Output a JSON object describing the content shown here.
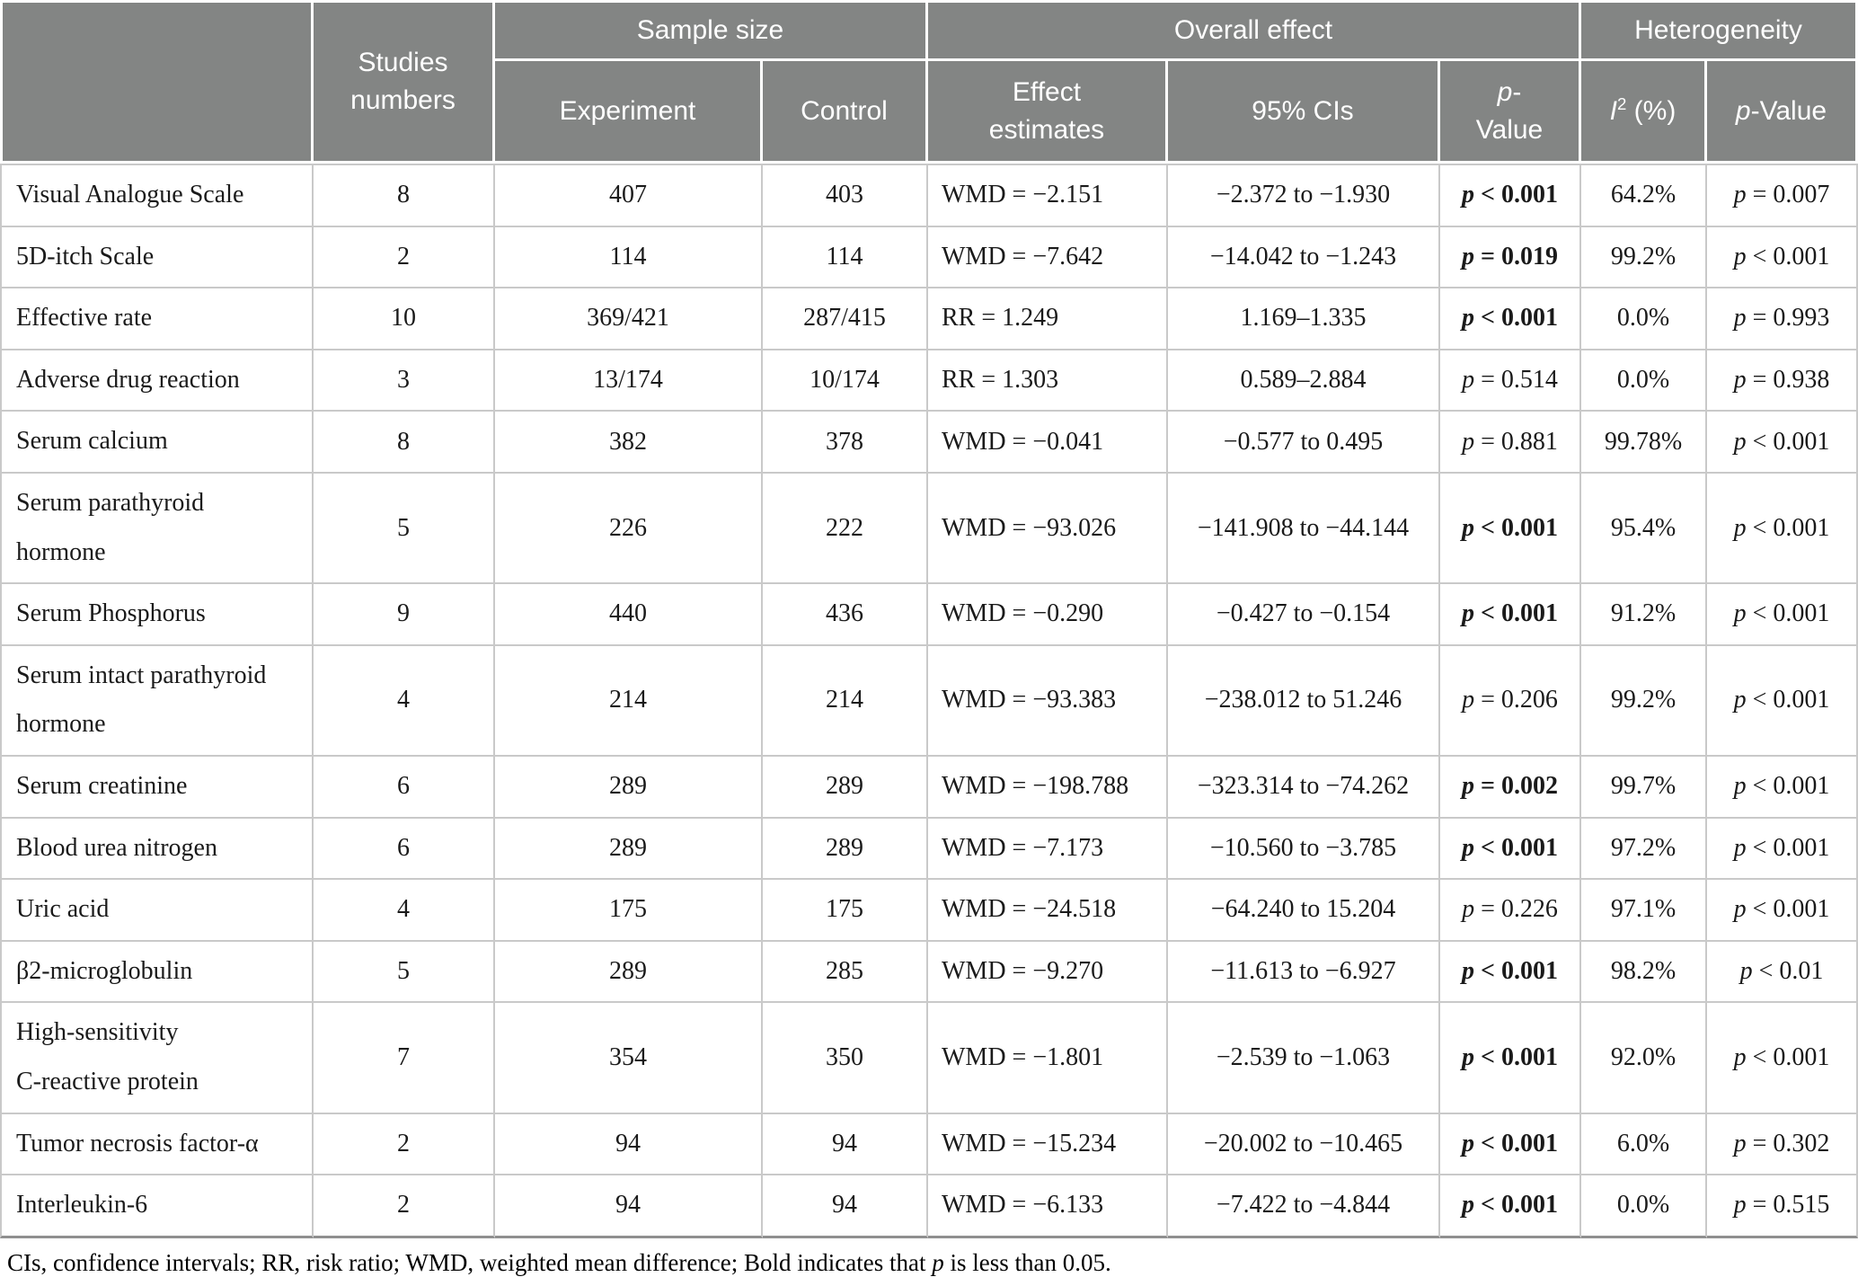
{
  "table": {
    "header": {
      "blank": "",
      "studies": "Studies\nnumbers",
      "sample_size": "Sample size",
      "experiment": "Experiment",
      "control": "Control",
      "overall_effect": "Overall effect",
      "effect_estimates": "Effect\nestimates",
      "cis": "95% CIs",
      "p_symbol": "p",
      "p_value_overall_rest": "-\nValue",
      "heterogeneity": "Heterogeneity",
      "i2_italic": "I",
      "i2_sup": "2",
      "i2_rest": " (%)",
      "p_value_het_rest": "-Value"
    },
    "rows": [
      {
        "outcome": "Visual Analogue Scale",
        "studies": "8",
        "experiment": "407",
        "control": "403",
        "effect": "WMD = −2.151",
        "ci": "−2.372 to −1.930",
        "p": "< 0.001",
        "p_bold": true,
        "i2": "64.2%",
        "het_p": "= 0.007"
      },
      {
        "outcome": "5D-itch Scale",
        "studies": "2",
        "experiment": "114",
        "control": "114",
        "effect": "WMD = −7.642",
        "ci": "−14.042 to −1.243",
        "p": "= 0.019",
        "p_bold": true,
        "i2": "99.2%",
        "het_p": "< 0.001"
      },
      {
        "outcome": "Effective rate",
        "studies": "10",
        "experiment": "369/421",
        "control": "287/415",
        "effect": "RR = 1.249",
        "ci": "1.169–1.335",
        "p": "< 0.001",
        "p_bold": true,
        "i2": "0.0%",
        "het_p": "= 0.993"
      },
      {
        "outcome": "Adverse drug reaction",
        "studies": "3",
        "experiment": "13/174",
        "control": "10/174",
        "effect": "RR = 1.303",
        "ci": "0.589–2.884",
        "p": "= 0.514",
        "p_bold": false,
        "i2": "0.0%",
        "het_p": "= 0.938"
      },
      {
        "outcome": "Serum calcium",
        "studies": "8",
        "experiment": "382",
        "control": "378",
        "effect": "WMD = −0.041",
        "ci": "−0.577 to 0.495",
        "p": "= 0.881",
        "p_bold": false,
        "i2": "99.78%",
        "het_p": "< 0.001"
      },
      {
        "outcome": "Serum parathyroid\nhormone",
        "studies": "5",
        "experiment": "226",
        "control": "222",
        "effect": "WMD = −93.026",
        "ci": "−141.908 to −44.144",
        "p": "< 0.001",
        "p_bold": true,
        "i2": "95.4%",
        "het_p": "< 0.001"
      },
      {
        "outcome": "Serum Phosphorus",
        "studies": "9",
        "experiment": "440",
        "control": "436",
        "effect": "WMD = −0.290",
        "ci": "−0.427 to −0.154",
        "p": "< 0.001",
        "p_bold": true,
        "i2": "91.2%",
        "het_p": "< 0.001"
      },
      {
        "outcome": "Serum intact parathyroid\nhormone",
        "studies": "4",
        "experiment": "214",
        "control": "214",
        "effect": "WMD = −93.383",
        "ci": "−238.012 to 51.246",
        "p": "= 0.206",
        "p_bold": false,
        "i2": "99.2%",
        "het_p": "< 0.001"
      },
      {
        "outcome": "Serum creatinine",
        "studies": "6",
        "experiment": "289",
        "control": "289",
        "effect": "WMD = −198.788",
        "ci": "−323.314 to −74.262",
        "p": "= 0.002",
        "p_bold": true,
        "i2": "99.7%",
        "het_p": "< 0.001"
      },
      {
        "outcome": "Blood urea nitrogen",
        "studies": "6",
        "experiment": "289",
        "control": "289",
        "effect": "WMD = −7.173",
        "ci": "−10.560 to −3.785",
        "p": "< 0.001",
        "p_bold": true,
        "i2": "97.2%",
        "het_p": "< 0.001"
      },
      {
        "outcome": "Uric acid",
        "studies": "4",
        "experiment": "175",
        "control": "175",
        "effect": "WMD = −24.518",
        "ci": "−64.240 to 15.204",
        "p": "= 0.226",
        "p_bold": false,
        "i2": "97.1%",
        "het_p": "< 0.001"
      },
      {
        "outcome": "β2-microglobulin",
        "studies": "5",
        "experiment": "289",
        "control": "285",
        "effect": "WMD = −9.270",
        "ci": "−11.613 to −6.927",
        "p": "< 0.001",
        "p_bold": true,
        "i2": "98.2%",
        "het_p": "< 0.01"
      },
      {
        "outcome": "High-sensitivity\nC-reactive protein",
        "studies": "7",
        "experiment": "354",
        "control": "350",
        "effect": "WMD = −1.801",
        "ci": "−2.539 to −1.063",
        "p": "< 0.001",
        "p_bold": true,
        "i2": "92.0%",
        "het_p": "< 0.001"
      },
      {
        "outcome": "Tumor necrosis factor-α",
        "studies": "2",
        "experiment": "94",
        "control": "94",
        "effect": "WMD = −15.234",
        "ci": "−20.002 to −10.465",
        "p": "< 0.001",
        "p_bold": true,
        "i2": "6.0%",
        "het_p": "= 0.302"
      },
      {
        "outcome": "Interleukin-6",
        "studies": "2",
        "experiment": "94",
        "control": "94",
        "effect": "WMD = −6.133",
        "ci": "−7.422 to −4.844",
        "p": "< 0.001",
        "p_bold": true,
        "i2": "0.0%",
        "het_p": "= 0.515"
      }
    ],
    "footnote": {
      "part1": "CIs, confidence intervals; RR, risk ratio; WMD, weighted mean difference; Bold indicates that ",
      "p": "p",
      "part2": " is less than 0.05."
    }
  },
  "colors": {
    "header_bg": "#838584",
    "header_text": "#ffffff",
    "row_border": "#c9c9c9",
    "table_bottom_border": "#8f8f8f",
    "body_text": "#1a1a1a"
  }
}
